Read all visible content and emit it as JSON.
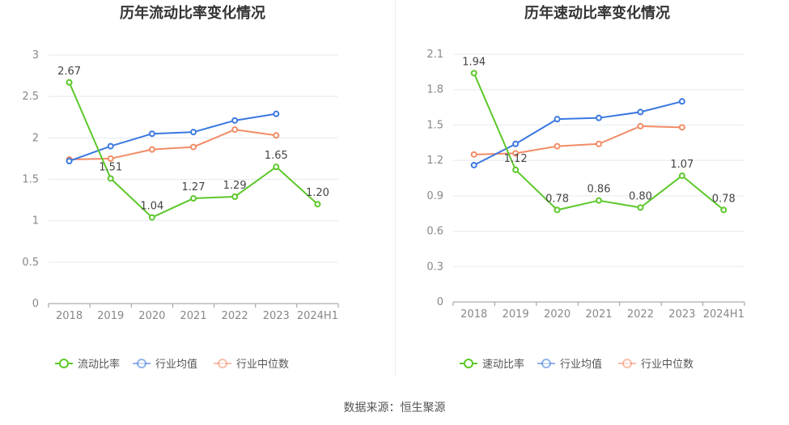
{
  "chart_data": [
    {
      "type": "line",
      "title": "历年流动比率变化情况",
      "categories": [
        "2018",
        "2019",
        "2020",
        "2021",
        "2022",
        "2023",
        "2024H1"
      ],
      "ylim": [
        0,
        3
      ],
      "yticks": [
        "0",
        "0.5",
        "1",
        "1.5",
        "2",
        "2.5",
        "3"
      ],
      "ytick_values": [
        0,
        0.5,
        1,
        1.5,
        2,
        2.5,
        3
      ],
      "grid": true,
      "legend_position": "bottom",
      "series": [
        {
          "name": "流动比率",
          "color": "#5cc829",
          "values": [
            2.67,
            1.51,
            1.04,
            1.27,
            1.29,
            1.65,
            1.2
          ],
          "labels": [
            "2.67",
            "1.51",
            "1.04",
            "1.27",
            "1.29",
            "1.65",
            "1.20"
          ]
        },
        {
          "name": "行业均值",
          "color": "#3a78e0",
          "values": [
            1.72,
            1.9,
            2.05,
            2.07,
            2.21,
            2.29,
            null
          ]
        },
        {
          "name": "行业中位数",
          "color": "#f28c66",
          "values": [
            1.74,
            1.75,
            1.86,
            1.89,
            2.1,
            2.03,
            null
          ]
        }
      ]
    },
    {
      "type": "line",
      "title": "历年速动比率变化情况",
      "categories": [
        "2018",
        "2019",
        "2020",
        "2021",
        "2022",
        "2023",
        "2024H1"
      ],
      "ylim": [
        0,
        2.1
      ],
      "yticks": [
        "0",
        "0.3",
        "0.6",
        "0.9",
        "1.2",
        "1.5",
        "1.8",
        "2.1"
      ],
      "ytick_values": [
        0,
        0.3,
        0.6,
        0.9,
        1.2,
        1.5,
        1.8,
        2.1
      ],
      "grid": true,
      "legend_position": "bottom",
      "series": [
        {
          "name": "速动比率",
          "color": "#5cc829",
          "values": [
            1.94,
            1.12,
            0.78,
            0.86,
            0.8,
            1.07,
            0.78
          ],
          "labels": [
            "1.94",
            "1.12",
            "0.78",
            "0.86",
            "0.80",
            "1.07",
            "0.78"
          ]
        },
        {
          "name": "行业均值",
          "color": "#3a78e0",
          "values": [
            1.16,
            1.34,
            1.55,
            1.56,
            1.61,
            1.7,
            null
          ]
        },
        {
          "name": "行业中位数",
          "color": "#f28c66",
          "values": [
            1.25,
            1.26,
            1.32,
            1.34,
            1.49,
            1.48,
            null
          ]
        }
      ]
    }
  ],
  "source_text": "数据来源：恒生聚源"
}
